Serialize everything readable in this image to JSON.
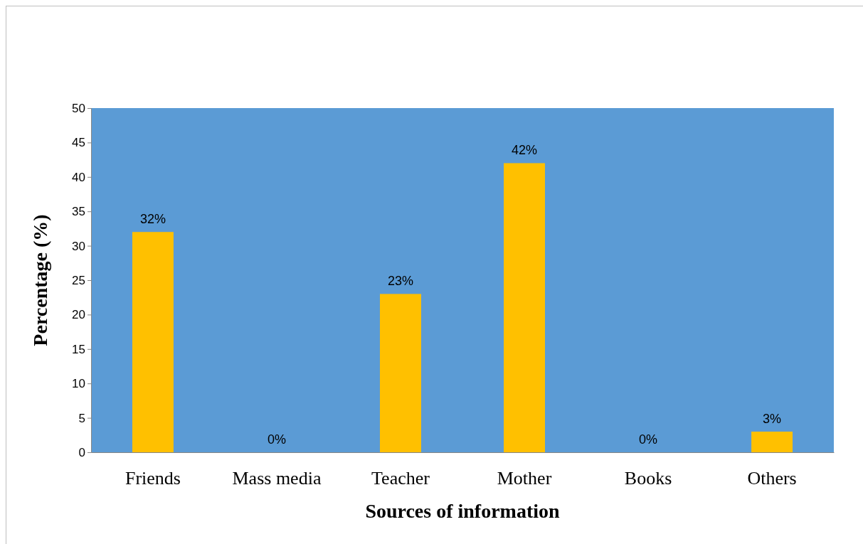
{
  "chart_data": {
    "type": "bar",
    "xlabel": "Sources of information",
    "ylabel": "Percentage (%)",
    "categories": [
      "Friends",
      "Mass media",
      "Teacher",
      "Mother",
      "Books",
      "Others"
    ],
    "values": [
      32,
      0,
      23,
      42,
      0,
      3
    ],
    "value_labels": [
      "32%",
      "0%",
      "23%",
      "42%",
      "0%",
      "3%"
    ],
    "color": "#ffc000",
    "ylim": [
      0,
      50
    ],
    "yticks": [
      0,
      5,
      10,
      15,
      20,
      25,
      30,
      35,
      40,
      45,
      50
    ],
    "grid": false
  }
}
